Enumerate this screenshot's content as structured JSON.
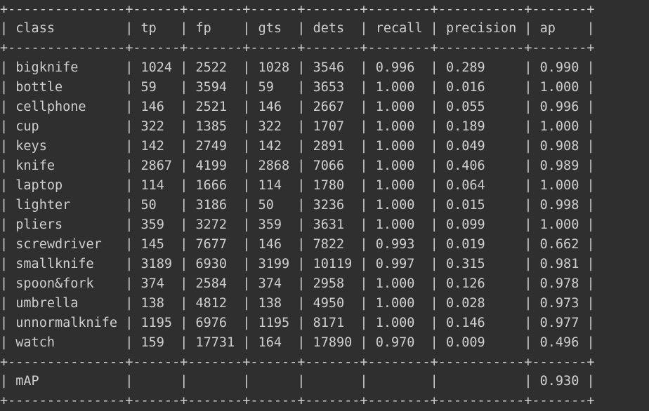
{
  "table": {
    "border_line": "+---------------+------+-------+------+-------+--------+-----------+-------+",
    "header": [
      "class",
      "tp",
      "fp",
      "gts",
      "dets",
      "recall",
      "precision",
      "ap"
    ],
    "rows": [
      [
        "bigknife",
        "1024",
        "2522",
        "1028",
        "3546",
        "0.996",
        "0.289",
        "0.990"
      ],
      [
        "bottle",
        "59",
        "3594",
        "59",
        "3653",
        "1.000",
        "0.016",
        "1.000"
      ],
      [
        "cellphone",
        "146",
        "2521",
        "146",
        "2667",
        "1.000",
        "0.055",
        "0.996"
      ],
      [
        "cup",
        "322",
        "1385",
        "322",
        "1707",
        "1.000",
        "0.189",
        "1.000"
      ],
      [
        "keys",
        "142",
        "2749",
        "142",
        "2891",
        "1.000",
        "0.049",
        "0.908"
      ],
      [
        "knife",
        "2867",
        "4199",
        "2868",
        "7066",
        "1.000",
        "0.406",
        "0.989"
      ],
      [
        "laptop",
        "114",
        "1666",
        "114",
        "1780",
        "1.000",
        "0.064",
        "1.000"
      ],
      [
        "lighter",
        "50",
        "3186",
        "50",
        "3236",
        "1.000",
        "0.015",
        "0.998"
      ],
      [
        "pliers",
        "359",
        "3272",
        "359",
        "3631",
        "1.000",
        "0.099",
        "1.000"
      ],
      [
        "screwdriver",
        "145",
        "7677",
        "146",
        "7822",
        "0.993",
        "0.019",
        "0.662"
      ],
      [
        "smallknife",
        "3189",
        "6930",
        "3199",
        "10119",
        "0.997",
        "0.315",
        "0.981"
      ],
      [
        "spoon&fork",
        "374",
        "2584",
        "374",
        "2958",
        "1.000",
        "0.126",
        "0.978"
      ],
      [
        "umbrella",
        "138",
        "4812",
        "138",
        "4950",
        "1.000",
        "0.028",
        "0.973"
      ],
      [
        "unnormalknife",
        "1195",
        "6976",
        "1195",
        "8171",
        "1.000",
        "0.146",
        "0.977"
      ],
      [
        "watch",
        "159",
        "17731",
        "164",
        "17890",
        "0.970",
        "0.009",
        "0.496"
      ]
    ],
    "summary": [
      "mAP",
      "",
      "",
      "",
      "",
      "",
      "",
      "0.930"
    ]
  }
}
